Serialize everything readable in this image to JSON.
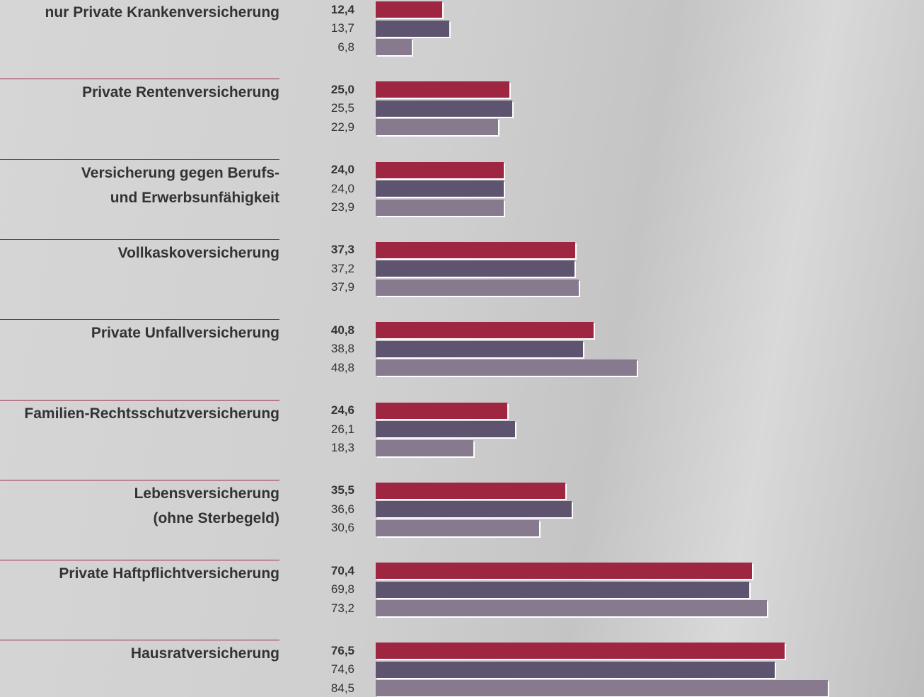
{
  "chart_data": {
    "type": "bar",
    "categories": [
      "nur Private Krankenversicherung",
      "Private Rentenversicherung",
      "Versicherung gegen Berufs-\nund Erwerbsunfähigkeit",
      "Vollkaskoversicherung",
      "Private Unfallversicherung",
      "Familien-Rechtsschutzversicherung",
      "Lebensversicherung\n(ohne Sterbegeld)",
      "Private Haftpflichtversicherung",
      "Hausratversicherung"
    ],
    "series": [
      {
        "color": "#9e2641",
        "values": [
          12.4,
          25.0,
          24.0,
          37.3,
          40.8,
          24.6,
          35.5,
          70.4,
          76.5
        ],
        "value_labels": [
          "12,4",
          "25,0",
          "24,0",
          "37,3",
          "40,8",
          "24,6",
          "35,5",
          "70,4",
          "76,5"
        ]
      },
      {
        "color": "#5e5470",
        "values": [
          13.7,
          25.5,
          24.0,
          37.2,
          38.8,
          26.1,
          36.6,
          69.8,
          74.6
        ],
        "value_labels": [
          "13,7",
          "25,5",
          "24,0",
          "37,2",
          "38,8",
          "26,1",
          "36,6",
          "69,8",
          "74,6"
        ]
      },
      {
        "color": "#877a8f",
        "values": [
          6.8,
          22.9,
          23.9,
          37.9,
          48.8,
          18.3,
          30.6,
          73.2,
          84.5
        ],
        "value_labels": [
          "6,8",
          "22,9",
          "23,9",
          "37,9",
          "48,8",
          "18,3",
          "30,6",
          "73,2",
          "84,5"
        ]
      }
    ]
  }
}
